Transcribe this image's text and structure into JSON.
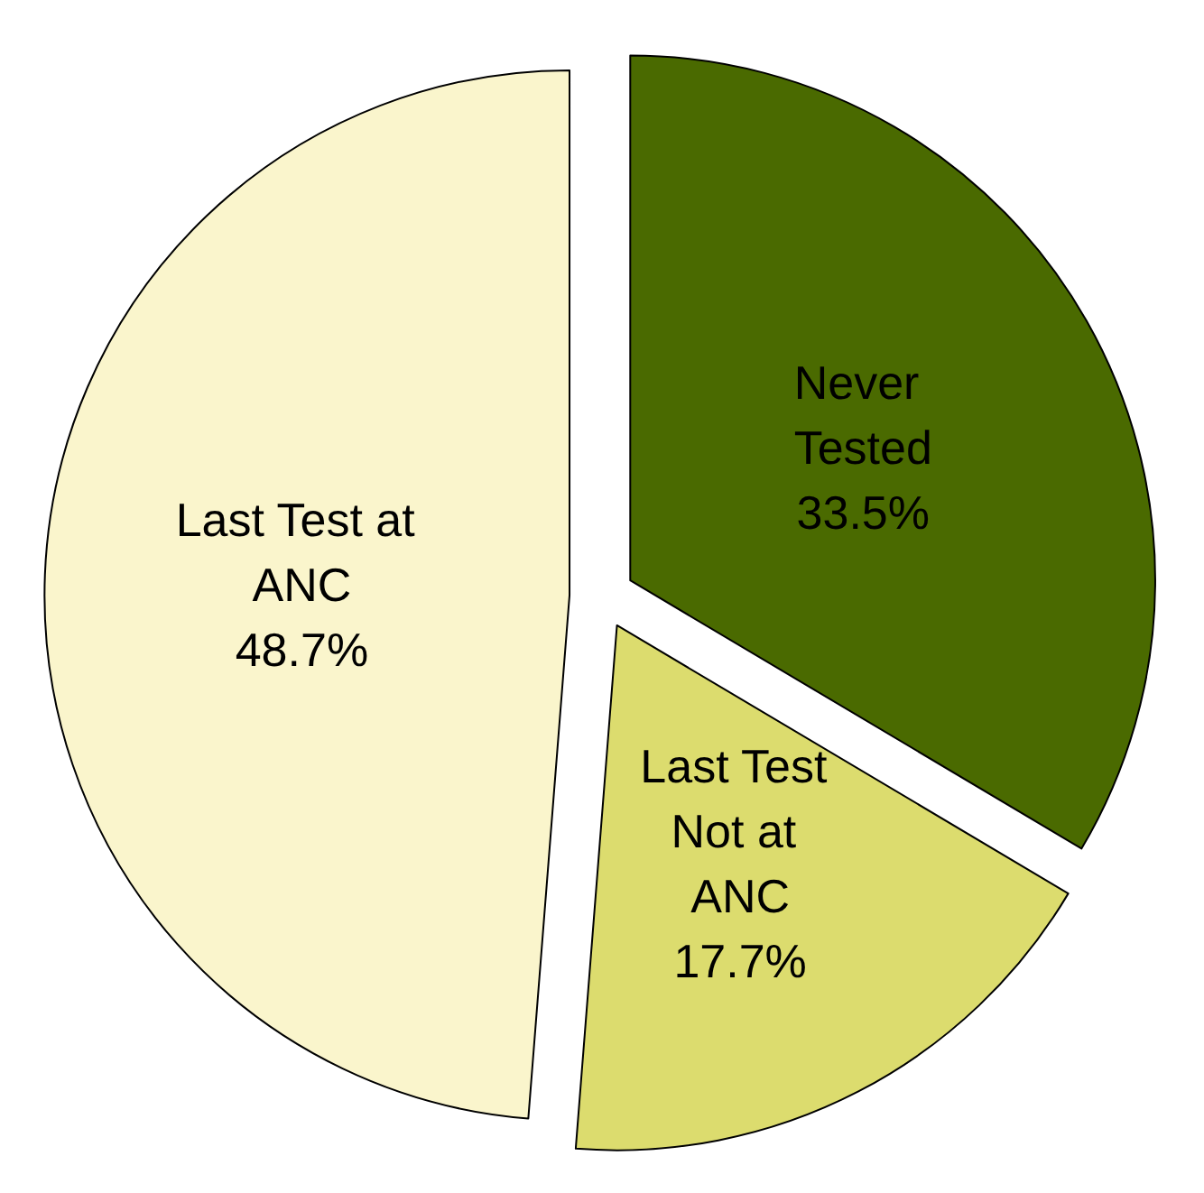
{
  "chart_data": {
    "type": "pie",
    "categories": [
      "Never Tested",
      "Last Test Not at ANC",
      "Last Test at ANC"
    ],
    "values": [
      33.5,
      17.7,
      48.7
    ],
    "colors": [
      "#4a6a00",
      "#dcdc6e",
      "#faf5cc"
    ],
    "value_labels": [
      "33.5%",
      "17.7%",
      "48.7%"
    ]
  }
}
